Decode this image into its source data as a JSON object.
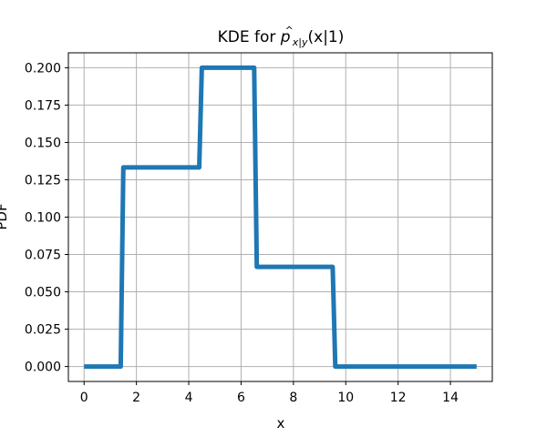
{
  "chart_data": {
    "type": "line",
    "title": {
      "prefix": "KDE for ",
      "symbol": "p",
      "hat": "^",
      "subscript": "x|y",
      "suffix": "(x|1)"
    },
    "xlabel": "x",
    "ylabel": "PDF",
    "xlim": [
      -0.6,
      15.6
    ],
    "ylim": [
      -0.01,
      0.21
    ],
    "grid": true,
    "x_ticks": [
      0,
      2,
      4,
      6,
      8,
      10,
      12,
      14
    ],
    "y_ticks": [
      0.0,
      0.025,
      0.05,
      0.075,
      0.1,
      0.125,
      0.15,
      0.175,
      0.2
    ],
    "x_tick_labels": [
      "0",
      "2",
      "4",
      "6",
      "8",
      "10",
      "12",
      "14"
    ],
    "y_tick_labels": [
      "0.000",
      "0.025",
      "0.050",
      "0.075",
      "0.100",
      "0.125",
      "0.150",
      "0.175",
      "0.200"
    ],
    "series": [
      {
        "color": "#1f77b4",
        "x": [
          0,
          1.4,
          1.5,
          4.4,
          4.5,
          6.5,
          6.6,
          9.5,
          9.6,
          15
        ],
        "y": [
          0,
          0,
          0.1333,
          0.1333,
          0.2,
          0.2,
          0.0667,
          0.0667,
          0,
          0
        ]
      }
    ]
  }
}
